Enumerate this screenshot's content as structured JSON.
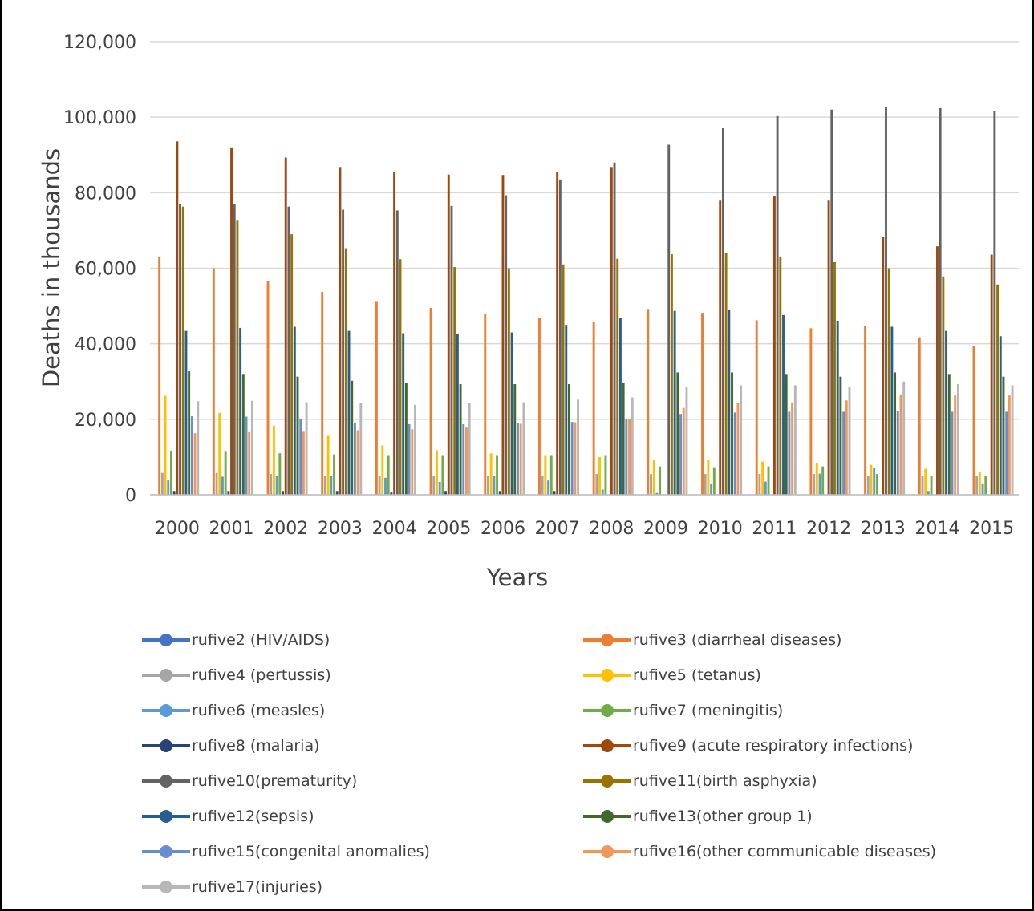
{
  "chart_data": {
    "type": "bar",
    "title": "",
    "xlabel": "Years",
    "ylabel": "Deaths in thousands",
    "ylim": [
      0,
      120000
    ],
    "yticks": [
      "0",
      "20,000",
      "40,000",
      "60,000",
      "80,000",
      "100,000",
      "120,000"
    ],
    "grid": true,
    "legend_position": "bottom",
    "categories": [
      "2000",
      "2001",
      "2002",
      "2003",
      "2004",
      "2005",
      "2006",
      "2007",
      "2008",
      "2009",
      "2010",
      "2011",
      "2012",
      "2013",
      "2014",
      "2015"
    ],
    "series": [
      {
        "name": "rufive2 (HIV/AIDS)",
        "color": "#4472c4",
        "values": [
          0,
          0,
          0,
          0,
          0,
          0,
          0,
          0,
          0,
          0,
          0,
          0,
          0,
          0,
          0,
          0
        ]
      },
      {
        "name": "rufive3 (diarrheal diseases)",
        "color": "#ed7d31",
        "values": [
          63000,
          60000,
          56500,
          53700,
          51300,
          49500,
          47900,
          46900,
          45800,
          49200,
          48200,
          46200,
          44100,
          44800,
          41700,
          39300
        ]
      },
      {
        "name": "rufive4 (pertussis)",
        "color": "#a5a5a5",
        "values": [
          5800,
          5800,
          5500,
          5100,
          5100,
          4900,
          4900,
          4900,
          5500,
          5500,
          5500,
          5500,
          5500,
          5100,
          5100,
          5100
        ]
      },
      {
        "name": "rufive5 (tetanus)",
        "color": "#ffc000",
        "values": [
          26200,
          21700,
          18300,
          15600,
          13100,
          11800,
          11000,
          10300,
          10000,
          9300,
          9200,
          8800,
          8500,
          7900,
          6900,
          6000
        ]
      },
      {
        "name": "rufive6 (measles)",
        "color": "#5b9bd5",
        "values": [
          3800,
          4800,
          5000,
          4900,
          4500,
          3400,
          5000,
          3800,
          1400,
          500,
          3000,
          3500,
          5600,
          7000,
          1000,
          3000
        ]
      },
      {
        "name": "rufive7 (meningitis)",
        "color": "#70ad47",
        "values": [
          11700,
          11400,
          11000,
          10700,
          10300,
          10300,
          10300,
          10300,
          10300,
          7500,
          7300,
          7500,
          7500,
          5500,
          5100,
          5100
        ]
      },
      {
        "name": "rufive8 (malaria)",
        "color": "#264478",
        "values": [
          1000,
          1000,
          1000,
          1000,
          600,
          1000,
          1000,
          1000,
          0,
          0,
          0,
          0,
          0,
          0,
          0,
          0
        ]
      },
      {
        "name": "rufive9 (acute respiratory infections)",
        "color": "#9e480e",
        "values": [
          93600,
          92000,
          89300,
          86800,
          85500,
          84800,
          84700,
          85500,
          86800,
          0,
          77900,
          79000,
          77900,
          68200,
          65800,
          63600
        ]
      },
      {
        "name": "rufive10(prematurity)",
        "color": "#636363",
        "values": [
          76900,
          76900,
          76300,
          75500,
          75300,
          76500,
          79300,
          83500,
          88000,
          92700,
          97200,
          100300,
          102000,
          102700,
          102400,
          101700
        ]
      },
      {
        "name": "rufive11(birth asphyxia)",
        "color": "#997300",
        "values": [
          76300,
          72800,
          69000,
          65300,
          62400,
          60300,
          60000,
          61000,
          62500,
          63700,
          64000,
          63100,
          61600,
          60000,
          57800,
          55700
        ]
      },
      {
        "name": "rufive12(sepsis)",
        "color": "#255e91",
        "values": [
          43400,
          44200,
          44500,
          43400,
          42800,
          42500,
          43000,
          45000,
          46800,
          48700,
          48900,
          47600,
          46100,
          44500,
          43400,
          42000
        ]
      },
      {
        "name": "rufive13(other group 1)",
        "color": "#43682b",
        "values": [
          32700,
          32000,
          31300,
          30200,
          29700,
          29300,
          29300,
          29300,
          29700,
          32400,
          32400,
          32000,
          31300,
          32400,
          32000,
          31300
        ]
      },
      {
        "name": "rufive15(congenital anomalies)",
        "color": "#698ed0",
        "values": [
          20800,
          20700,
          20200,
          19000,
          18700,
          18700,
          19000,
          19300,
          20200,
          21400,
          21800,
          22000,
          22000,
          22300,
          22000,
          22000
        ]
      },
      {
        "name": "rufive16(other communicable diseases)",
        "color": "#f1975a",
        "values": [
          16300,
          16600,
          16700,
          17100,
          17400,
          17800,
          18800,
          19200,
          20200,
          23000,
          24300,
          24500,
          25000,
          26600,
          26300,
          26300
        ]
      },
      {
        "name": "rufive17(injuries)",
        "color": "#b7b7b7",
        "values": [
          24800,
          24900,
          24500,
          24300,
          23800,
          24300,
          24500,
          25200,
          25800,
          28600,
          29000,
          29000,
          28600,
          30000,
          29300,
          29000
        ]
      }
    ]
  }
}
